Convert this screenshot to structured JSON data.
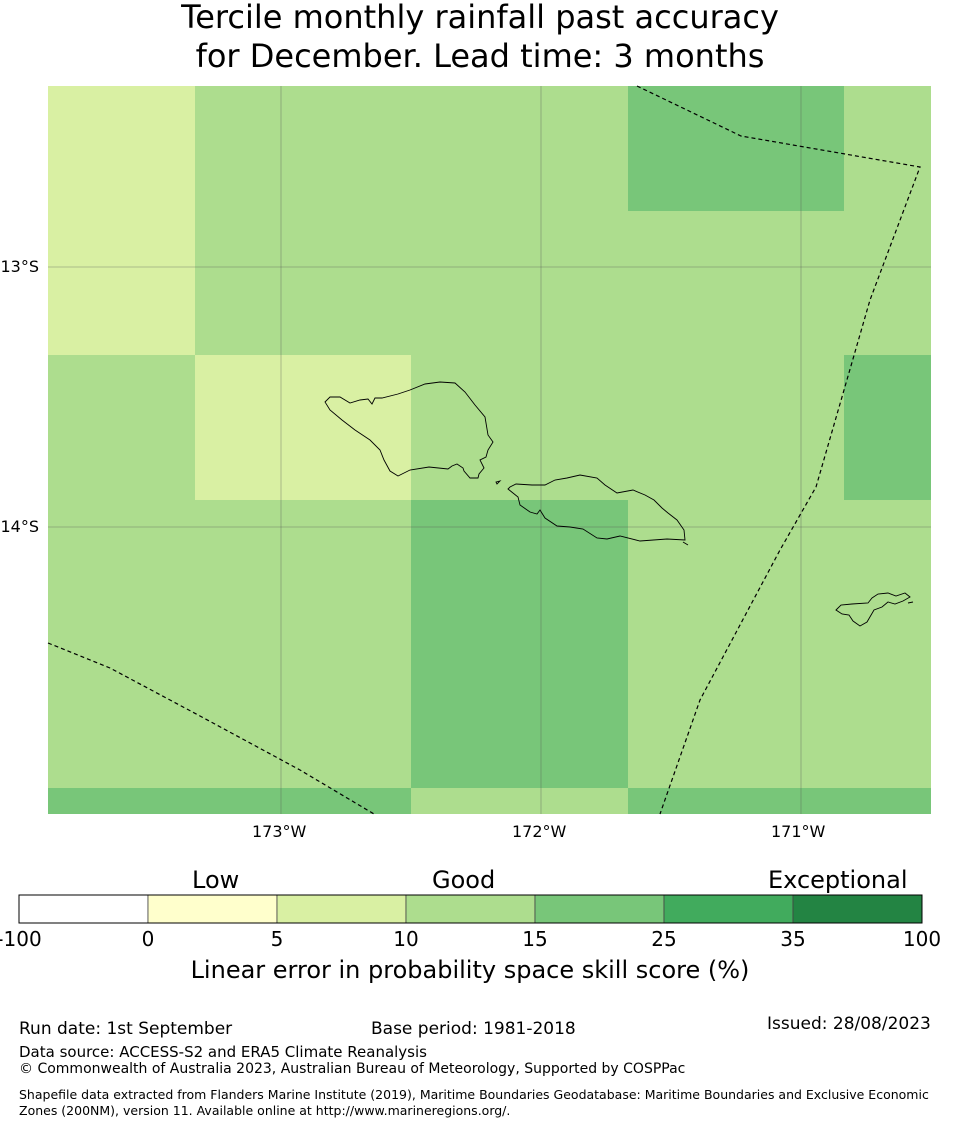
{
  "title": {
    "line1": "Tercile monthly rainfall past accuracy",
    "line2": "for December. Lead time: 3 months"
  },
  "map": {
    "lat_labels": [
      "13°S",
      "14°S"
    ],
    "lon_labels": [
      "173°W",
      "172°W",
      "171°W"
    ]
  },
  "colorbar": {
    "headers": {
      "low": "Low",
      "good": "Good",
      "exceptional": "Exceptional"
    },
    "ticks": [
      "-100",
      "0",
      "5",
      "10",
      "15",
      "25",
      "35",
      "100"
    ],
    "colors": [
      "#ffffff",
      "#ffffcc",
      "#d9f0a3",
      "#addd8e",
      "#78c679",
      "#41ab5d",
      "#238443"
    ],
    "label": "Linear error in probability space skill score (%)"
  },
  "footer": {
    "run_date": "Run date: 1st September",
    "base_period": "Base period: 1981-2018",
    "issued": "Issued: 28/08/2023",
    "data_source": "Data source: ACCESS-S2 and ERA5 Climate Reanalysis",
    "copyright": "© Commonwealth of Australia 2023, Australian Bureau of Meteorology, Supported by COSPPac",
    "shapefile": "Shapefile data extracted from Flanders Marine Institute (2019), Maritime Boundaries Geodatabase: Maritime Boundaries and Exclusive Economic Zones (200NM), version 11. Available online at http://www.marineregions.org/."
  }
}
